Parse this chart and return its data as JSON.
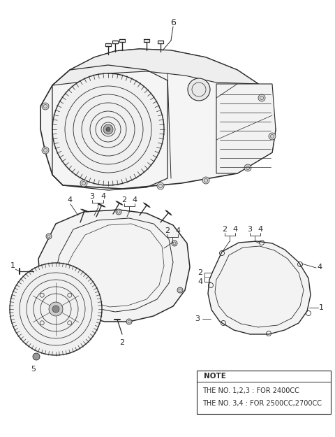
{
  "bg_color": "#ffffff",
  "line_color": "#2a2a2a",
  "fig_width": 4.8,
  "fig_height": 6.25,
  "dpi": 100,
  "note_text_0": "NOTE",
  "note_text_1": "THE NO. 1,2,3 : FOR 2400CC",
  "note_text_2": "THE NO. 3,4 : FOR 2500CC,2700CC",
  "label_6": "6",
  "label_1a": "1",
  "label_2a": "2",
  "label_3a": "3",
  "label_4a": "4",
  "label_5": "5",
  "label_1b": "1",
  "label_2b": "2",
  "label_3b": "3",
  "label_4b": "4"
}
